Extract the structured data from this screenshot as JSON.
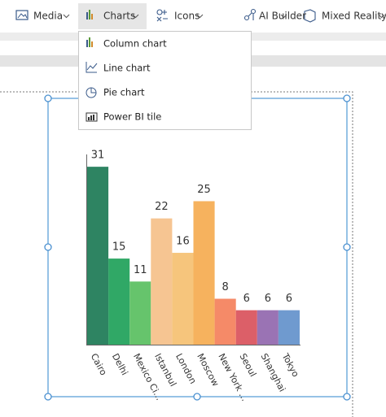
{
  "toolbar": {
    "items": [
      "Media",
      "Charts",
      "Icons",
      "AI Builder",
      "Mixed Reality"
    ]
  },
  "menu": {
    "items": [
      "Column chart",
      "Line chart",
      "Pie chart",
      "Power BI tile"
    ]
  },
  "chart_data": {
    "type": "bar",
    "categories": [
      "Cairo",
      "Delhi",
      "Mexico Ci...",
      "Istanbul",
      "London",
      "Moscow",
      "New York ...",
      "Seoul",
      "Shanghai",
      "Tokyo"
    ],
    "values": [
      31,
      15,
      11,
      22,
      16,
      25,
      8,
      6,
      6,
      6
    ],
    "colors": [
      "#2e8462",
      "#30a866",
      "#66c46c",
      "#f6c592",
      "#f6c57c",
      "#f6b25e",
      "#f58a68",
      "#dc5f68",
      "#9a73b4",
      "#6f9acf"
    ]
  }
}
